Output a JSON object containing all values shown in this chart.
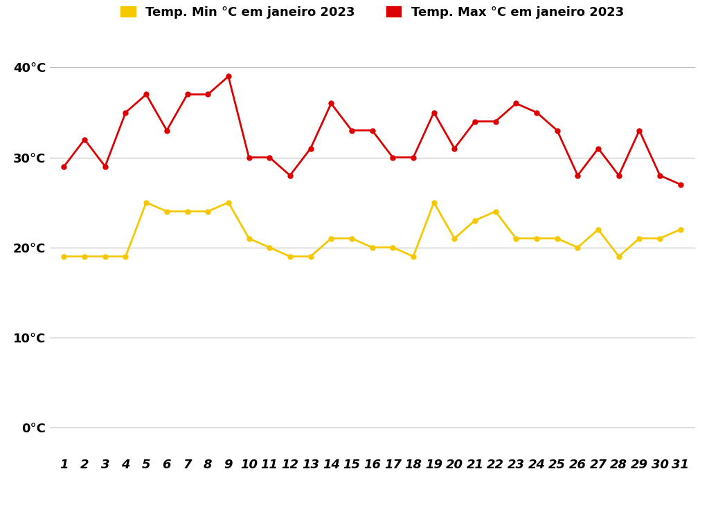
{
  "days": [
    1,
    2,
    3,
    4,
    5,
    6,
    7,
    8,
    9,
    10,
    11,
    12,
    13,
    14,
    15,
    16,
    17,
    18,
    19,
    20,
    21,
    22,
    23,
    24,
    25,
    26,
    27,
    28,
    29,
    30,
    31
  ],
  "temp_max": [
    29,
    32,
    29,
    35,
    37,
    33,
    37,
    37,
    39,
    30,
    30,
    28,
    31,
    36,
    33,
    33,
    30,
    30,
    35,
    31,
    34,
    34,
    36,
    35,
    33,
    28,
    31,
    28,
    33,
    28,
    27
  ],
  "temp_min": [
    19,
    19,
    19,
    19,
    25,
    24,
    24,
    24,
    25,
    21,
    20,
    19,
    19,
    21,
    21,
    20,
    20,
    19,
    25,
    21,
    23,
    24,
    21,
    21,
    21,
    20,
    22,
    19,
    21,
    21,
    22
  ],
  "max_color": "#dd0000",
  "min_color": "#f5c800",
  "legend_min": "Temp. Min °C em janeiro 2023",
  "legend_max": "Temp. Max °C em janeiro 2023",
  "yticks": [
    0,
    10,
    20,
    30,
    40
  ],
  "ytick_labels": [
    "0°C",
    "10°C",
    "20°C",
    "30°C",
    "40°C"
  ],
  "ylim": [
    -3,
    43
  ],
  "xlim": [
    0.3,
    31.7
  ],
  "background_color": "#ffffff",
  "grid_color": "#bbbbbb",
  "marker_size": 5,
  "linewidth": 2.0,
  "legend_fontsize": 13,
  "tick_fontsize": 13
}
